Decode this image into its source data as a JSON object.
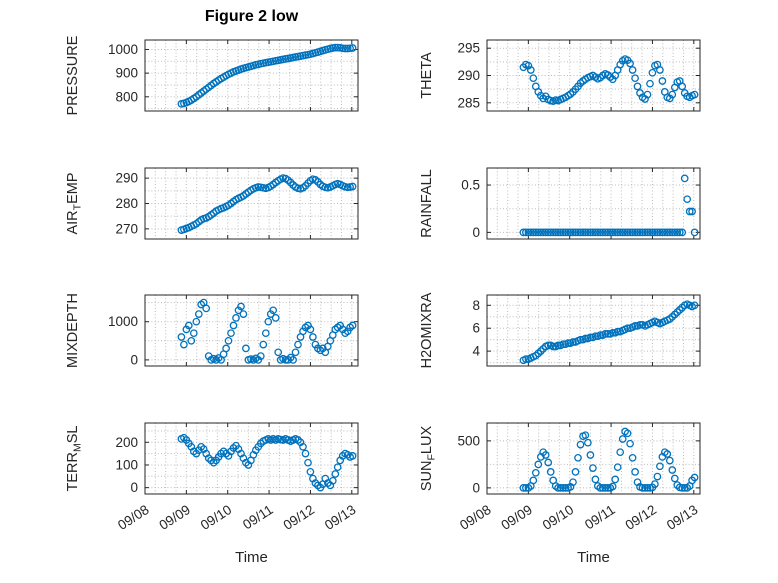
{
  "figure": {
    "title": "Figure 2 low",
    "x_axis_label": "Time",
    "marker_color": "#0072BD",
    "axis_color": "#262626",
    "grid_color": "#bbbbbb",
    "background": "#ffffff"
  },
  "time_axis": {
    "range": [
      0,
      5.15
    ],
    "ticks": [
      0,
      1,
      2,
      3,
      4,
      5
    ],
    "tick_labels": [
      "09/08",
      "09/09",
      "09/10",
      "09/11",
      "09/12",
      "09/13"
    ],
    "minor_step": 0.25,
    "x_days": [
      0.88,
      0.94,
      1.0,
      1.06,
      1.12,
      1.18,
      1.24,
      1.3,
      1.36,
      1.42,
      1.48,
      1.54,
      1.6,
      1.66,
      1.72,
      1.78,
      1.84,
      1.9,
      1.96,
      2.02,
      2.08,
      2.14,
      2.2,
      2.26,
      2.32,
      2.38,
      2.44,
      2.5,
      2.56,
      2.62,
      2.68,
      2.74,
      2.8,
      2.86,
      2.92,
      2.98,
      3.04,
      3.1,
      3.16,
      3.22,
      3.28,
      3.34,
      3.4,
      3.46,
      3.52,
      3.58,
      3.64,
      3.7,
      3.76,
      3.82,
      3.88,
      3.94,
      4.0,
      4.06,
      4.12,
      4.18,
      4.24,
      4.3,
      4.36,
      4.42,
      4.48,
      4.54,
      4.6,
      4.66,
      4.72,
      4.78,
      4.84,
      4.9,
      4.96,
      5.02
    ]
  },
  "chart_data": [
    {
      "name": "PRESSURE",
      "type": "scatter",
      "marker": "open-circle",
      "ylabel": "PRESSURE",
      "ylabel_parts": [
        {
          "t": "PRESSURE"
        }
      ],
      "yticks": [
        800,
        900,
        1000
      ],
      "ytick_labels": [
        "800",
        "900",
        "1000"
      ],
      "ylim": [
        740,
        1040
      ],
      "values": [
        770,
        772,
        776,
        780,
        786,
        793,
        800,
        808,
        816,
        824,
        832,
        840,
        848,
        856,
        863,
        870,
        877,
        883,
        889,
        895,
        900,
        905,
        909,
        913,
        917,
        920,
        923,
        926,
        929,
        932,
        935,
        937,
        940,
        942,
        944,
        946,
        948,
        950,
        952,
        954,
        956,
        958,
        960,
        962,
        964,
        966,
        968,
        970,
        972,
        974,
        976,
        978,
        980,
        983,
        986,
        989,
        992,
        995,
        998,
        1001,
        1004,
        1006,
        1008,
        1008,
        1007,
        1005,
        1004,
        1004,
        1005,
        1006
      ]
    },
    {
      "name": "AIR_TEMP",
      "type": "scatter",
      "marker": "open-circle",
      "ylabel": "AIR_TEMP",
      "ylabel_parts": [
        {
          "t": "AIR"
        },
        {
          "s": "T"
        },
        {
          "t": "EMP"
        }
      ],
      "yticks": [
        270,
        280,
        290
      ],
      "ytick_labels": [
        "270",
        "280",
        "290"
      ],
      "ylim": [
        266,
        294
      ],
      "values": [
        269.5,
        269.8,
        270.2,
        270.5,
        271,
        271.5,
        272,
        272.8,
        273.5,
        274,
        274.3,
        274.8,
        275.5,
        276.2,
        277,
        277.5,
        278,
        278.3,
        278.8,
        279.3,
        280,
        280.8,
        281.5,
        282,
        282.5,
        283,
        283.8,
        284.5,
        285.2,
        285.8,
        286.2,
        286.5,
        286.4,
        286.2,
        286,
        286.3,
        286.8,
        287.5,
        288.3,
        289,
        289.6,
        290,
        289.8,
        289.2,
        288.3,
        287.3,
        286.5,
        286,
        285.8,
        286.2,
        287,
        288,
        289,
        289.6,
        289.3,
        288.5,
        287.5,
        286.8,
        286.4,
        286.2,
        286.5,
        287,
        287.5,
        287.8,
        287.5,
        287,
        286.6,
        286.4,
        286.5,
        286.7
      ]
    },
    {
      "name": "MIXDEPTH",
      "type": "scatter",
      "marker": "open-circle",
      "ylabel": "MIXDEPTH",
      "ylabel_parts": [
        {
          "t": "MIXDEPTH"
        }
      ],
      "yticks": [
        0,
        1000
      ],
      "ytick_labels": [
        "0",
        "1000"
      ],
      "ylim": [
        -160,
        1700
      ],
      "values": [
        600,
        400,
        800,
        900,
        500,
        700,
        1000,
        1200,
        1450,
        1500,
        1350,
        100,
        0,
        30,
        0,
        50,
        0,
        150,
        300,
        500,
        700,
        900,
        1100,
        1300,
        1400,
        1200,
        300,
        0,
        20,
        0,
        40,
        0,
        100,
        400,
        700,
        1000,
        1200,
        1300,
        1100,
        200,
        0,
        30,
        0,
        0,
        60,
        0,
        200,
        400,
        600,
        750,
        850,
        900,
        800,
        600,
        400,
        300,
        250,
        300,
        200,
        350,
        500,
        650,
        800,
        850,
        900,
        800,
        700,
        750,
        850,
        900
      ]
    },
    {
      "name": "TERR_MSL",
      "type": "scatter",
      "marker": "open-circle",
      "ylabel": "TERR_MSL",
      "ylabel_parts": [
        {
          "t": "TERR"
        },
        {
          "s": "M"
        },
        {
          "t": "SL"
        }
      ],
      "yticks": [
        0,
        100,
        200
      ],
      "ytick_labels": [
        "0",
        "100",
        "200"
      ],
      "ylim": [
        -28,
        285
      ],
      "values": [
        215,
        220,
        210,
        195,
        180,
        160,
        150,
        165,
        180,
        170,
        150,
        130,
        120,
        110,
        120,
        135,
        150,
        160,
        150,
        140,
        160,
        175,
        185,
        170,
        150,
        130,
        110,
        100,
        120,
        145,
        165,
        180,
        195,
        205,
        210,
        215,
        210,
        215,
        210,
        215,
        212,
        210,
        215,
        210,
        205,
        210,
        215,
        210,
        200,
        180,
        150,
        110,
        70,
        40,
        20,
        10,
        0,
        15,
        40,
        20,
        10,
        30,
        60,
        90,
        120,
        140,
        150,
        145,
        135,
        140
      ]
    },
    {
      "name": "THETA",
      "type": "scatter",
      "marker": "open-circle",
      "ylabel": "THETA",
      "ylabel_parts": [
        {
          "t": "THETA"
        }
      ],
      "yticks": [
        285,
        290,
        295
      ],
      "ytick_labels": [
        "285",
        "290",
        "295"
      ],
      "ylim": [
        283.5,
        296.5
      ],
      "values": [
        291.5,
        292,
        291.8,
        291,
        289.5,
        288,
        287,
        286.3,
        285.8,
        286.2,
        285.6,
        285.4,
        285.3,
        285.5,
        285.4,
        285.6,
        285.8,
        286,
        286.3,
        286.6,
        287,
        287.5,
        288,
        288.6,
        289,
        289.3,
        289.6,
        289.8,
        290,
        289.7,
        289.4,
        289.6,
        290,
        290.3,
        290.1,
        289.7,
        289.3,
        290,
        291,
        292,
        292.7,
        293,
        292.8,
        292.2,
        291,
        289.5,
        288,
        286.8,
        286,
        285.7,
        286.5,
        288.5,
        290.5,
        291.8,
        292,
        291,
        289,
        287,
        286,
        285.8,
        286.5,
        287.8,
        288.8,
        289,
        288,
        286.8,
        286.2,
        286,
        286.3,
        286.5
      ]
    },
    {
      "name": "RAINFALL",
      "type": "scatter",
      "marker": "open-circle",
      "ylabel": "RAINFALL",
      "ylabel_parts": [
        {
          "t": "RAINFALL"
        }
      ],
      "yticks": [
        0,
        0.5
      ],
      "ytick_labels": [
        "0",
        "0.5"
      ],
      "ylim": [
        -0.07,
        0.68
      ],
      "values": [
        0,
        0,
        0,
        0,
        0,
        0,
        0,
        0,
        0,
        0,
        0,
        0,
        0,
        0,
        0,
        0,
        0,
        0,
        0,
        0,
        0,
        0,
        0,
        0,
        0,
        0,
        0,
        0,
        0,
        0,
        0,
        0,
        0,
        0,
        0,
        0,
        0,
        0,
        0,
        0,
        0,
        0,
        0,
        0,
        0,
        0,
        0,
        0,
        0,
        0,
        0,
        0,
        0,
        0,
        0,
        0,
        0,
        0,
        0,
        0,
        0,
        0,
        0,
        0,
        0,
        0.57,
        0.35,
        0.22,
        0.22,
        0
      ]
    },
    {
      "name": "H2OMIXRA",
      "type": "scatter",
      "marker": "open-circle",
      "ylabel": "H2OMIXRA",
      "ylabel_parts": [
        {
          "t": "H2OMIXRA"
        }
      ],
      "yticks": [
        4,
        6,
        8
      ],
      "ytick_labels": [
        "4",
        "6",
        "8"
      ],
      "ylim": [
        2.7,
        8.9
      ],
      "values": [
        3.2,
        3.3,
        3.3,
        3.4,
        3.5,
        3.6,
        3.8,
        4,
        4.2,
        4.4,
        4.5,
        4.5,
        4.4,
        4.4,
        4.5,
        4.5,
        4.6,
        4.6,
        4.7,
        4.7,
        4.8,
        4.8,
        4.9,
        5,
        5,
        5.1,
        5.1,
        5.2,
        5.2,
        5.3,
        5.3,
        5.4,
        5.4,
        5.5,
        5.5,
        5.5,
        5.6,
        5.6,
        5.7,
        5.7,
        5.8,
        5.9,
        6,
        6,
        6.1,
        6.2,
        6.2,
        6.3,
        6.3,
        6.2,
        6.3,
        6.4,
        6.5,
        6.6,
        6.5,
        6.4,
        6.5,
        6.6,
        6.7,
        6.8,
        7,
        7.2,
        7.4,
        7.6,
        7.8,
        8,
        8.1,
        8,
        7.9,
        8
      ]
    },
    {
      "name": "SUN_FLUX",
      "type": "scatter",
      "marker": "open-circle",
      "ylabel": "SUN_FLUX",
      "ylabel_parts": [
        {
          "t": "SUN"
        },
        {
          "s": "F"
        },
        {
          "t": "LUX"
        }
      ],
      "yticks": [
        0,
        500
      ],
      "ytick_labels": [
        "0",
        "500"
      ],
      "ylim": [
        -65,
        690
      ],
      "values": [
        0,
        0,
        0,
        20,
        80,
        160,
        250,
        330,
        380,
        350,
        270,
        170,
        80,
        20,
        0,
        0,
        0,
        0,
        0,
        10,
        60,
        170,
        320,
        460,
        550,
        560,
        480,
        350,
        210,
        90,
        20,
        0,
        0,
        0,
        0,
        0,
        15,
        90,
        220,
        380,
        520,
        600,
        580,
        470,
        320,
        170,
        60,
        10,
        0,
        0,
        0,
        0,
        5,
        40,
        120,
        230,
        330,
        380,
        360,
        290,
        190,
        100,
        30,
        5,
        0,
        0,
        0,
        20,
        80,
        110
      ]
    }
  ]
}
